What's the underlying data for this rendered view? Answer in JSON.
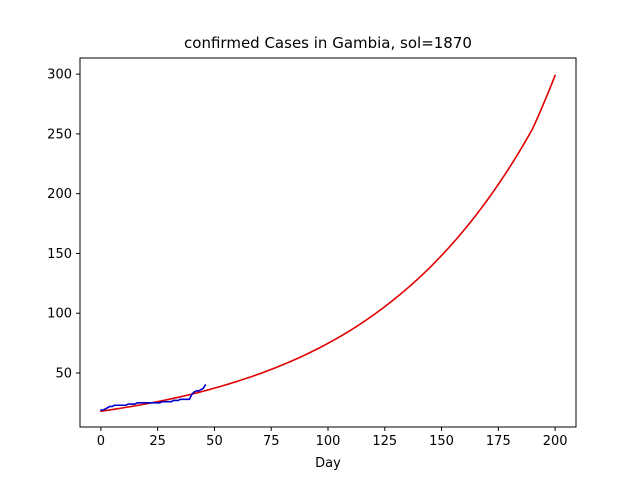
{
  "chart_data": {
    "type": "line",
    "title": "confirmed Cases in Gambia, sol=1870",
    "xlabel": "Day",
    "ylabel": "",
    "xlim": [
      -9.2,
      209.2
    ],
    "ylim": [
      4.8,
      313.5
    ],
    "xticks": [
      0,
      25,
      50,
      75,
      100,
      125,
      150,
      175,
      200
    ],
    "yticks": [
      50,
      100,
      150,
      200,
      250,
      300
    ],
    "grid": false,
    "series": [
      {
        "style": "model",
        "color": "#e00000",
        "x": [
          0,
          10,
          20,
          30,
          40,
          50,
          60,
          70,
          80,
          90,
          100,
          110,
          120,
          130,
          140,
          150,
          160,
          170,
          180,
          190,
          200
        ],
        "y": [
          18,
          20.9,
          24.2,
          28.0,
          32.3,
          37.3,
          43.0,
          49.4,
          56.8,
          65.2,
          74.8,
          85.8,
          98.5,
          113.0,
          129.4,
          148.3,
          169.8,
          194.3,
          222.2,
          254.0,
          299.0
        ]
      },
      {
        "style": "observed",
        "color": "#0000cc",
        "x": [
          0,
          1,
          2,
          3,
          4,
          5,
          6,
          7,
          8,
          9,
          10,
          11,
          12,
          13,
          14,
          15,
          16,
          17,
          18,
          19,
          20,
          21,
          22,
          23,
          24,
          25,
          26,
          27,
          28,
          29,
          30,
          31,
          32,
          33,
          34,
          35,
          36,
          37,
          38,
          39,
          40,
          41,
          42,
          43,
          44,
          45,
          46
        ],
        "y": [
          19,
          19,
          20,
          21,
          22,
          22,
          23,
          23,
          23,
          23,
          23,
          23,
          24,
          24,
          24,
          24,
          25,
          25,
          25,
          25,
          25,
          25,
          25,
          25,
          25,
          25,
          25,
          26,
          26,
          26,
          26,
          26,
          27,
          27,
          27,
          28,
          28,
          28,
          28,
          28,
          32,
          34,
          35,
          35,
          36,
          37,
          40
        ]
      }
    ]
  }
}
